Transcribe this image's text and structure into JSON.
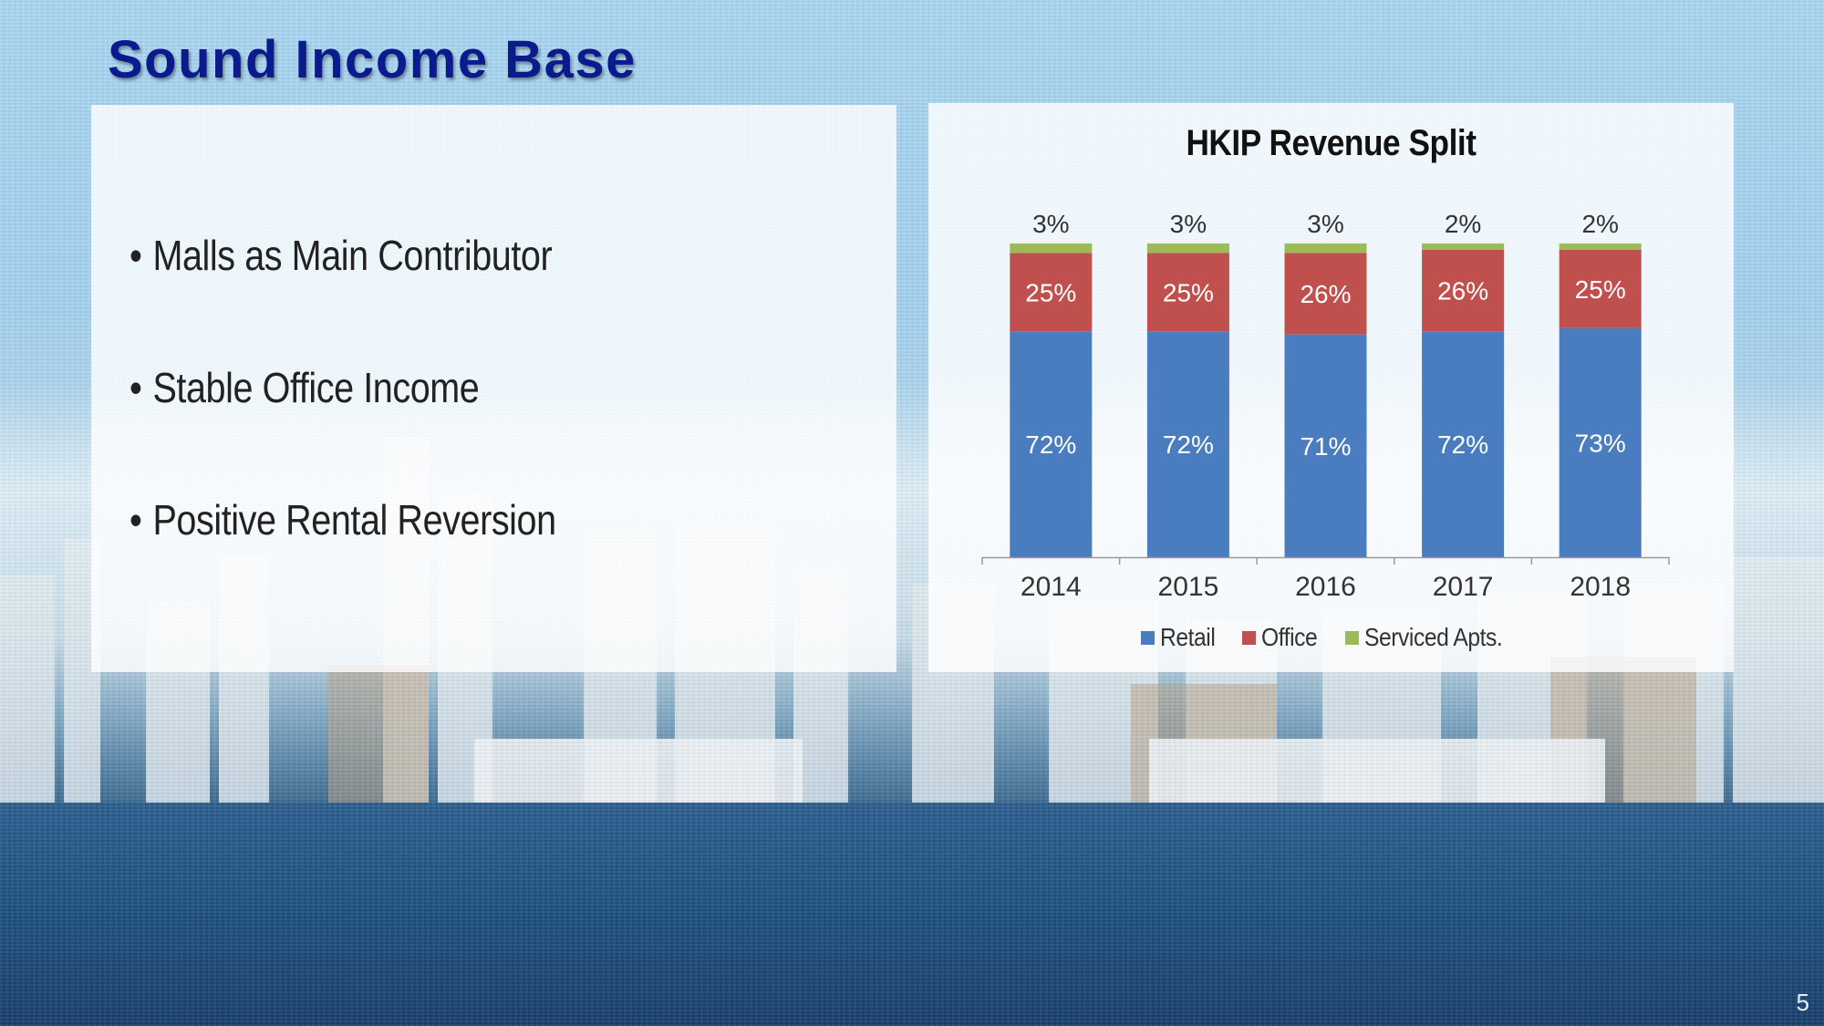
{
  "slide": {
    "title": "Sound Income Base",
    "bullets": [
      "Malls as Main Contributor",
      "Stable Office Income",
      "Positive Rental Reversion"
    ],
    "page_number": "5"
  },
  "chart_data": {
    "type": "bar",
    "stacked": true,
    "title": "HKIP Revenue Split",
    "categories": [
      "2014",
      "2015",
      "2016",
      "2017",
      "2018"
    ],
    "series": [
      {
        "name": "Retail",
        "color": "#4a7dbf",
        "label_color": "#ffffff",
        "values": [
          72,
          72,
          71,
          72,
          73
        ],
        "labels": [
          "72%",
          "72%",
          "71%",
          "72%",
          "73%"
        ]
      },
      {
        "name": "Office",
        "color": "#c0504d",
        "label_color": "#ffffff",
        "values": [
          25,
          25,
          26,
          26,
          25
        ],
        "labels": [
          "25%",
          "25%",
          "26%",
          "26%",
          "25%"
        ]
      },
      {
        "name": "Serviced Apts.",
        "color": "#9bbb59",
        "label_color": "#333333",
        "values": [
          3,
          3,
          3,
          2,
          2
        ],
        "labels": [
          "3%",
          "3%",
          "3%",
          "2%",
          "2%"
        ]
      }
    ],
    "ylim": [
      0,
      100
    ],
    "grid": false,
    "legend_position": "bottom"
  }
}
